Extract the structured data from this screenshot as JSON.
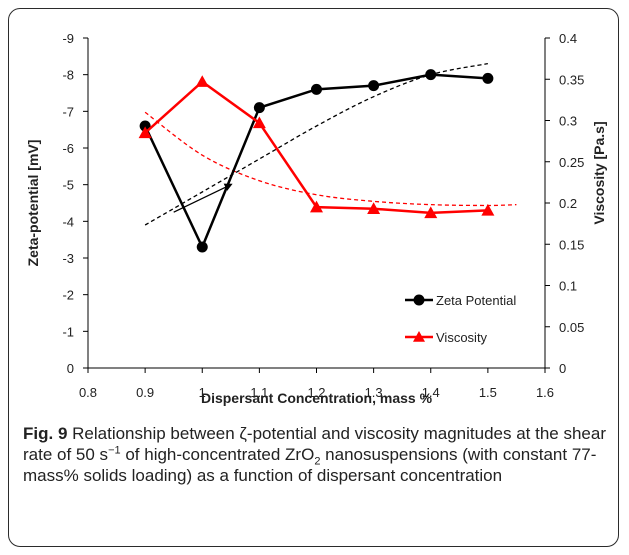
{
  "chart_data": {
    "type": "line",
    "xlabel": "Dispersant Concentration, mass %",
    "y_left_label": "Zeta-potential [mV]",
    "y_right_label": "Viscosity [Pa.s]",
    "x_ticks": [
      "0.8",
      "0.9",
      "1",
      "1.1",
      "1.2",
      "1.3",
      "1.4",
      "1.5",
      "1.6"
    ],
    "y_left_ticks": [
      "0",
      "-1",
      "-2",
      "-3",
      "-4",
      "-5",
      "-6",
      "-7",
      "-8",
      "-9"
    ],
    "y_right_ticks": [
      "0",
      "0.05",
      "0.1",
      "0.15",
      "0.2",
      "0.25",
      "0.3",
      "0.35",
      "0.4"
    ],
    "xlim": [
      0.8,
      1.6
    ],
    "y_left_lim": [
      0,
      -9
    ],
    "y_right_lim": [
      0,
      0.4
    ],
    "grid": false,
    "legend_position": "bottom-right",
    "series": [
      {
        "name": "Zeta Potential",
        "axis": "left",
        "marker": "circle",
        "color": "#000000",
        "x": [
          0.9,
          1.0,
          1.1,
          1.2,
          1.3,
          1.4,
          1.5
        ],
        "y": [
          -6.6,
          -3.3,
          -7.1,
          -7.6,
          -7.7,
          -8.0,
          -7.9
        ]
      },
      {
        "name": "Viscosity",
        "axis": "right",
        "marker": "triangle",
        "color": "#ff0000",
        "x": [
          0.9,
          1.0,
          1.1,
          1.2,
          1.3,
          1.4,
          1.5
        ],
        "y": [
          0.285,
          0.347,
          0.297,
          0.195,
          0.193,
          0.188,
          0.191
        ]
      }
    ],
    "trendlines": [
      {
        "of": "Zeta Potential",
        "axis": "left",
        "color": "#000000",
        "style": "dashed",
        "x": [
          0.9,
          1.0,
          1.1,
          1.2,
          1.3,
          1.4,
          1.5
        ],
        "y": [
          -3.9,
          -4.8,
          -5.7,
          -6.6,
          -7.4,
          -8.0,
          -8.3
        ]
      },
      {
        "of": "Viscosity",
        "axis": "right",
        "color": "#ff0000",
        "style": "dashed",
        "x": [
          0.9,
          1.0,
          1.1,
          1.2,
          1.3,
          1.4,
          1.5,
          1.55
        ],
        "y": [
          0.31,
          0.258,
          0.227,
          0.21,
          0.202,
          0.198,
          0.197,
          0.198
        ]
      }
    ],
    "annotations": [
      {
        "type": "arrow",
        "axis": "left",
        "color": "#000000",
        "x": [
          0.95,
          1.05
        ],
        "y": [
          -4.25,
          -5.0
        ]
      }
    ]
  },
  "caption": {
    "label": "Fig. 9",
    "text_1": " Relationship between ζ-potential and viscosity magnitudes at the shear rate of 50 s",
    "sup_1": "−1",
    "text_2": " of high-concentrated ZrO",
    "sub_1": "2",
    "text_3": " nanosuspensions (with constant 77-mass% solids loading) as a function of dispersant concentration"
  }
}
